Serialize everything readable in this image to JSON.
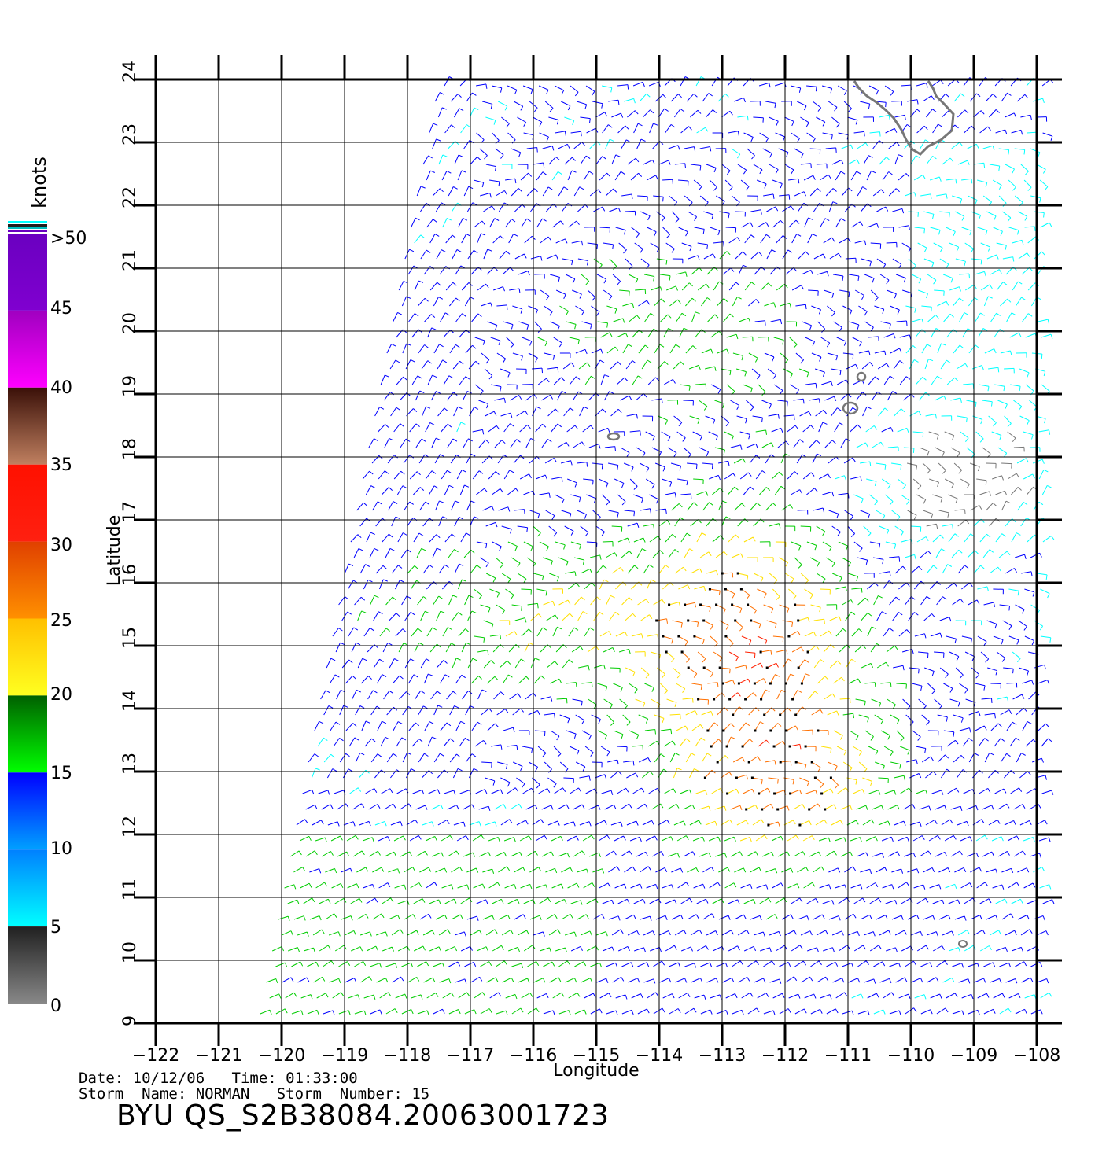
{
  "header": {
    "title": "BYU  QS_S2B38084.20063001723"
  },
  "footer": {
    "date_label": "Date:",
    "date_value": "10/12/06",
    "time_label": "Time:",
    "time_value": "01:33:00",
    "storm_name_label": "Storm  Name:",
    "storm_name_value": "NORMAN",
    "storm_number_label": "Storm  Number:",
    "storm_number_value": "15"
  },
  "axes": {
    "xlabel": "Longitude",
    "ylabel": "Latitude",
    "x_ticks": [
      "−122",
      "−121",
      "−120",
      "−119",
      "−118",
      "−117",
      "−116",
      "−115",
      "−114",
      "−113",
      "−112",
      "−111",
      "−110",
      "−109",
      "−108"
    ],
    "y_ticks": [
      "9",
      "10",
      "11",
      "12",
      "13",
      "14",
      "15",
      "16",
      "17",
      "18",
      "19",
      "20",
      "21",
      "22",
      "23",
      "24"
    ]
  },
  "colorbar": {
    "unit": "knots",
    "labels": [
      ">50",
      "45",
      "40",
      "35",
      "30",
      "25",
      "20",
      "15",
      "10",
      "5",
      "0"
    ],
    "colors": {
      "0-5": "#777777",
      "5-10": "#00ffff",
      "10-15": "#0000ff",
      "15-20": "#00cc00",
      "20-25": "#ffe000",
      "25-30": "#ff7000",
      "30-35": "#ff2000",
      "35-40": "#6b2a10",
      "40-45": "#ff00ff",
      "45-50": "#8000c0"
    }
  },
  "map": {
    "lon_range": [
      -122,
      -108
    ],
    "lat_range": [
      9,
      24
    ],
    "grid": true,
    "coastline_color": "#777777"
  }
}
